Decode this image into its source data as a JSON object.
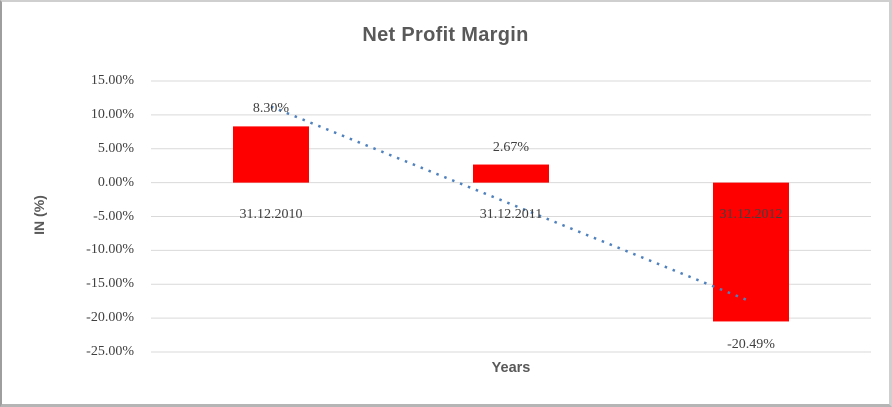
{
  "chart_data": {
    "type": "bar",
    "title": "Net Profit Margin",
    "xlabel": "Years",
    "ylabel": "IN (%)",
    "categories": [
      "31.12.2010",
      "31.12.2011",
      "31.12.2012"
    ],
    "values": [
      8.3,
      2.67,
      -20.49
    ],
    "data_labels": [
      "8.30%",
      "2.67%",
      "-20.49%"
    ],
    "y_ticks": [
      "15.00%",
      "10.00%",
      "5.00%",
      "0.00%",
      "-5.00%",
      "-10.00%",
      "-15.00%",
      "-20.00%",
      "-25.00%"
    ],
    "ylim": [
      -25,
      15
    ],
    "y_step": 5,
    "grid": true,
    "legend": "none",
    "bar_color": "#FF0000",
    "gridline_color": "#D9D9D9",
    "title_color": "#595959",
    "label_text_color": "#404040",
    "trendline": {
      "type": "linear",
      "style": "dotted",
      "color": "#4F81BD"
    }
  }
}
